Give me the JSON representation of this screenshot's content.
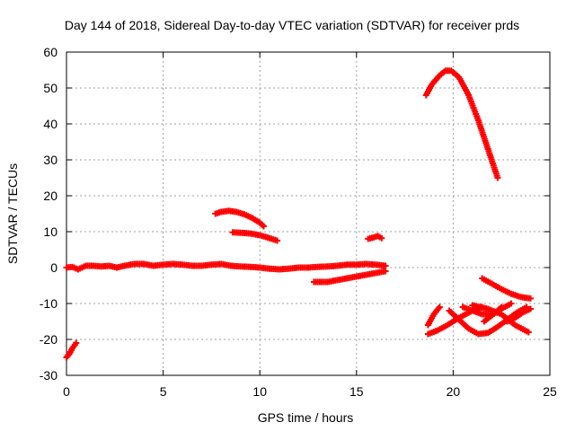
{
  "chart_data": {
    "type": "scatter",
    "title": "Day 144 of 2018, Sidereal Day-to-day VTEC variation (SDTVAR) for receiver prds",
    "xlabel": "GPS time / hours",
    "ylabel": "SDTVAR / TECUs",
    "xlim": [
      0,
      25
    ],
    "ylim": [
      -30,
      60
    ],
    "xticks": [
      0,
      5,
      10,
      15,
      20,
      25
    ],
    "yticks": [
      -30,
      -20,
      -10,
      0,
      10,
      20,
      30,
      40,
      50,
      60
    ],
    "grid": true,
    "marker_color": "#ff0000",
    "series": [
      {
        "points": [
          [
            0.0,
            -25
          ],
          [
            0.15,
            -24
          ],
          [
            0.3,
            -22.5
          ],
          [
            0.5,
            -21
          ]
        ]
      },
      {
        "points": [
          [
            0.0,
            0
          ],
          [
            0.3,
            0.2
          ],
          [
            0.6,
            -0.5
          ],
          [
            1.0,
            0.5
          ],
          [
            1.4,
            0.5
          ],
          [
            1.8,
            0.3
          ],
          [
            2.2,
            0.5
          ],
          [
            2.6,
            0
          ],
          [
            3.0,
            0.5
          ],
          [
            3.5,
            1
          ],
          [
            4.0,
            1
          ],
          [
            4.5,
            0.5
          ],
          [
            5.0,
            0.8
          ],
          [
            5.5,
            1
          ],
          [
            6.0,
            0.8
          ],
          [
            6.5,
            0.5
          ],
          [
            7.0,
            0.5
          ],
          [
            7.5,
            0.8
          ],
          [
            8.0,
            1
          ],
          [
            8.5,
            0.5
          ],
          [
            9.0,
            0.3
          ],
          [
            9.5,
            0.2
          ],
          [
            10.0,
            0
          ],
          [
            10.5,
            -0.3
          ],
          [
            11.0,
            -0.5
          ],
          [
            11.5,
            -0.3
          ],
          [
            12.0,
            0
          ],
          [
            12.5,
            0
          ],
          [
            13.0,
            0.2
          ],
          [
            13.5,
            0.3
          ],
          [
            14.0,
            0.5
          ],
          [
            14.5,
            0.8
          ],
          [
            15.0,
            0.8
          ],
          [
            15.5,
            1
          ],
          [
            16.0,
            0.8
          ],
          [
            16.5,
            0.5
          ]
        ]
      },
      {
        "points": [
          [
            7.7,
            15
          ],
          [
            8.0,
            15.5
          ],
          [
            8.4,
            15.8
          ],
          [
            8.8,
            15.5
          ],
          [
            9.2,
            14.8
          ],
          [
            9.6,
            13.8
          ],
          [
            10.0,
            12.5
          ],
          [
            10.2,
            11.5
          ]
        ]
      },
      {
        "points": [
          [
            8.6,
            9.8
          ],
          [
            9.0,
            9.7
          ],
          [
            9.5,
            9.5
          ],
          [
            10.0,
            9.0
          ],
          [
            10.5,
            8.2
          ],
          [
            10.9,
            7.5
          ]
        ]
      },
      {
        "points": [
          [
            12.8,
            -4
          ],
          [
            13.5,
            -4
          ],
          [
            14.0,
            -3.5
          ],
          [
            14.5,
            -3
          ],
          [
            15.0,
            -2.5
          ],
          [
            15.5,
            -2
          ],
          [
            16.0,
            -1.5
          ],
          [
            16.5,
            -1
          ]
        ]
      },
      {
        "points": [
          [
            15.6,
            8
          ],
          [
            15.9,
            8.4
          ],
          [
            16.1,
            8.8
          ],
          [
            16.3,
            8.2
          ]
        ]
      },
      {
        "points": [
          [
            18.6,
            48
          ],
          [
            18.9,
            51
          ],
          [
            19.3,
            53.5
          ],
          [
            19.6,
            54.8
          ],
          [
            19.9,
            54.8
          ],
          [
            20.3,
            53
          ],
          [
            20.8,
            48
          ],
          [
            21.3,
            41
          ],
          [
            21.8,
            33
          ],
          [
            22.3,
            25
          ]
        ]
      },
      {
        "points": [
          [
            18.7,
            -16
          ],
          [
            19.0,
            -13
          ],
          [
            19.3,
            -11
          ]
        ]
      },
      {
        "points": [
          [
            18.7,
            -18.5
          ],
          [
            19.2,
            -17.5
          ],
          [
            19.7,
            -16
          ],
          [
            20.3,
            -14
          ],
          [
            21.0,
            -12
          ],
          [
            21.5,
            -11
          ]
        ]
      },
      {
        "points": [
          [
            19.8,
            -12
          ],
          [
            20.3,
            -14.5
          ],
          [
            20.8,
            -17
          ],
          [
            21.3,
            -18.5
          ],
          [
            21.8,
            -18.2
          ],
          [
            22.3,
            -16.5
          ],
          [
            22.8,
            -14.5
          ],
          [
            23.3,
            -12.5
          ],
          [
            23.8,
            -11
          ]
        ]
      },
      {
        "points": [
          [
            20.5,
            -11
          ],
          [
            21.0,
            -12
          ],
          [
            21.5,
            -13
          ],
          [
            22.0,
            -13
          ],
          [
            22.5,
            -11.5
          ],
          [
            23.0,
            -10
          ]
        ]
      },
      {
        "points": [
          [
            21.0,
            -10.5
          ],
          [
            21.8,
            -11.5
          ],
          [
            22.5,
            -13
          ],
          [
            23.2,
            -16
          ],
          [
            23.9,
            -18
          ]
        ]
      },
      {
        "points": [
          [
            21.6,
            -15
          ],
          [
            22.2,
            -12.5
          ],
          [
            22.5,
            -11
          ]
        ]
      },
      {
        "points": [
          [
            21.5,
            -3
          ],
          [
            22.0,
            -4.5
          ],
          [
            22.5,
            -6
          ],
          [
            23.0,
            -7.3
          ],
          [
            23.5,
            -8.2
          ],
          [
            24.0,
            -8.6
          ]
        ]
      },
      {
        "points": [
          [
            22.8,
            -15
          ],
          [
            23.2,
            -14
          ],
          [
            23.6,
            -12.5
          ],
          [
            24.0,
            -11.5
          ]
        ]
      }
    ]
  }
}
